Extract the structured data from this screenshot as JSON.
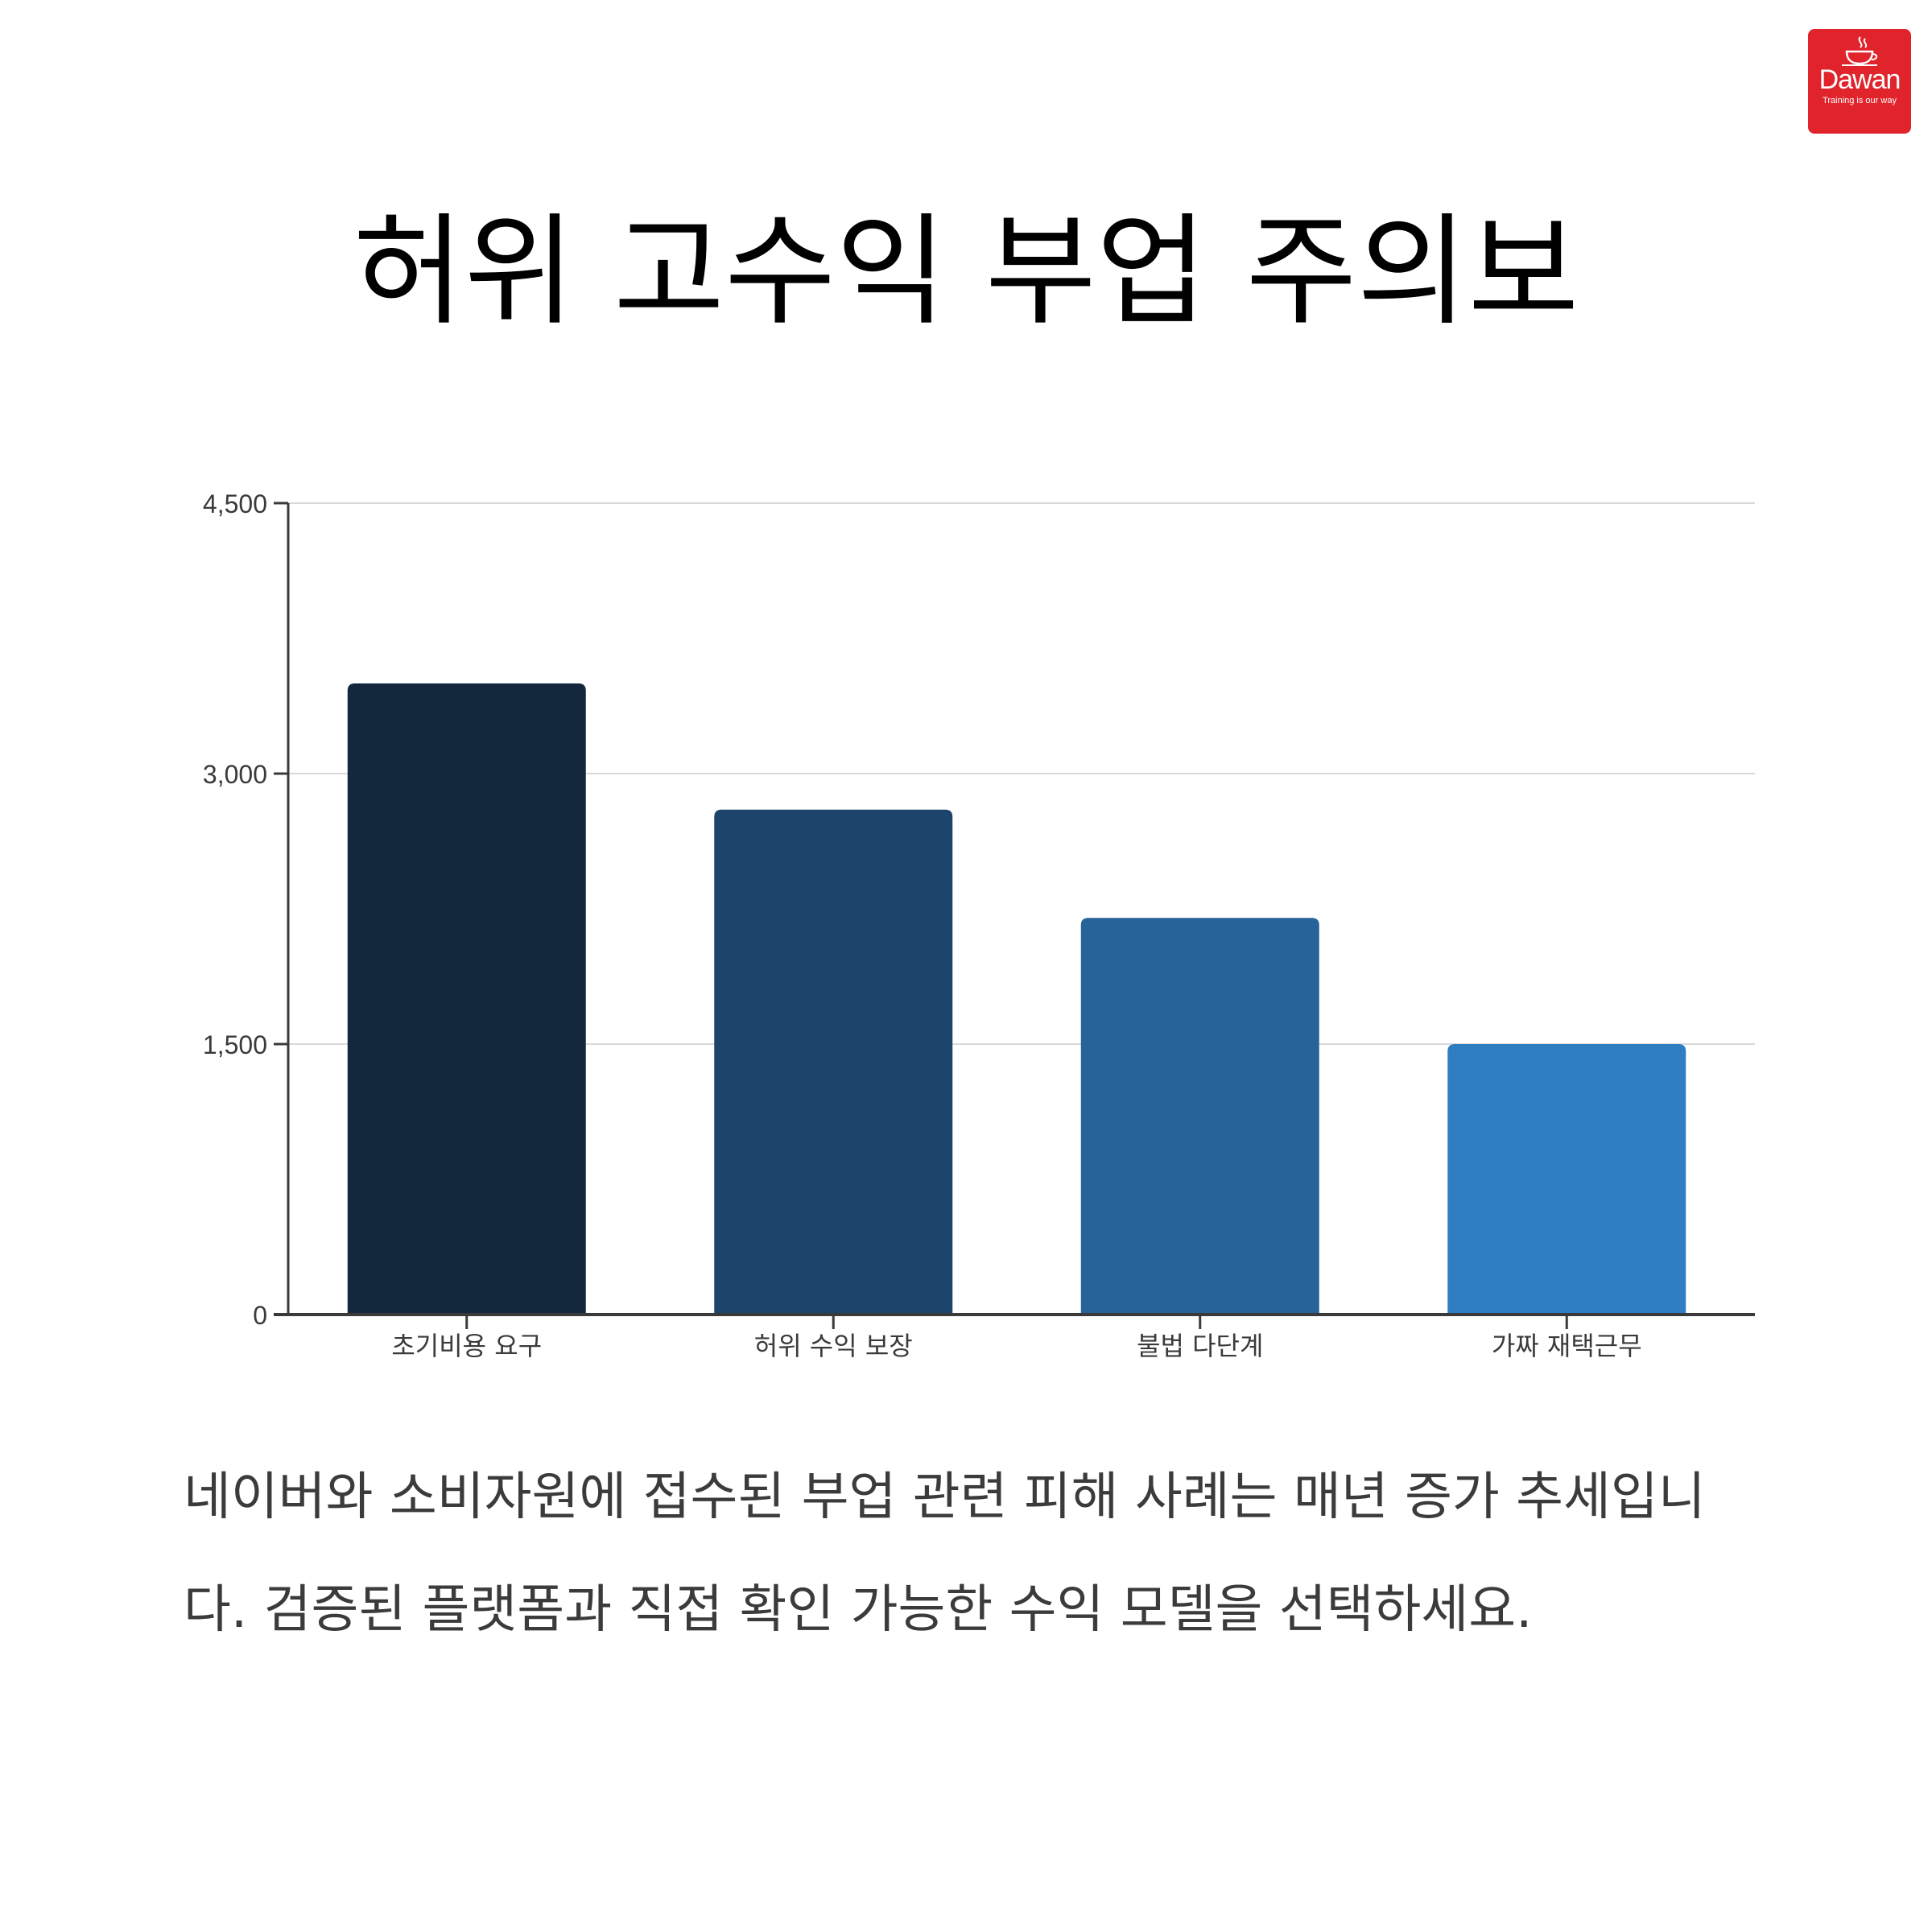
{
  "logo": {
    "name": "Dawan",
    "tagline": "Training is our way",
    "color": "#e1232b"
  },
  "title": "허위 고수익 부업 주의보",
  "caption": "네이버와 소비자원에 접수된 부업 관련 피해 사례는 매년 증가 추세입니다. 검증된 플랫폼과 직접 확인 가능한 수익 모델을 선택하세요.",
  "chart_data": {
    "type": "bar",
    "categories": [
      "초기비용 요구",
      "허위 수익 보장",
      "불법 다단계",
      "가짜 재택근무"
    ],
    "values": [
      3500,
      2800,
      2200,
      1500
    ],
    "ylim": [
      0,
      4500
    ],
    "yticks": [
      0,
      1500,
      3000,
      4500
    ],
    "ytick_labels": [
      "0",
      "1,500",
      "3,000",
      "4,500"
    ],
    "grid": true,
    "bar_colors": [
      "#13273d",
      "#1d456b",
      "#276398",
      "#2f7dc3"
    ],
    "xlabel": "",
    "ylabel": ""
  }
}
